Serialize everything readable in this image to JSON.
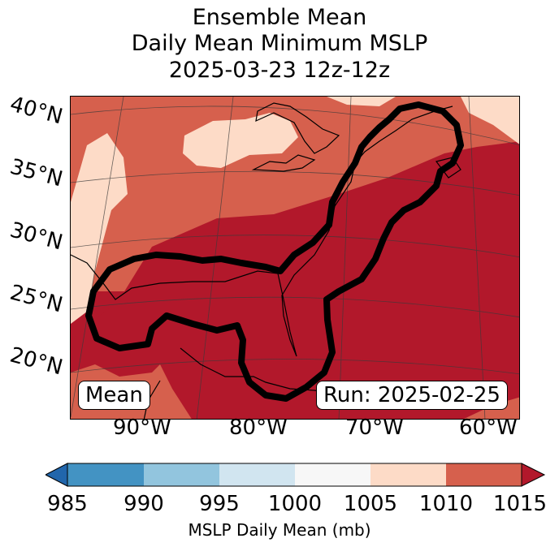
{
  "title": {
    "line1": "Ensemble Mean",
    "line2": "Daily Mean Minimum MSLP",
    "line3": "2025-03-23 12z-12z"
  },
  "map": {
    "lat_labels": [
      "40°N",
      "35°N",
      "30°N",
      "25°N",
      "20°N"
    ],
    "lon_labels": [
      "90°W",
      "80°W",
      "70°W",
      "60°W"
    ],
    "colors": {
      "c1005_1010": "#fddbc7",
      "c1010_1015": "#d6604d",
      "c1015_plus": "#b2182b"
    }
  },
  "labels": {
    "mean": "Mean",
    "run": "Run: 2025-02-25"
  },
  "colorbar": {
    "ticks": [
      "985",
      "990",
      "995",
      "1000",
      "1005",
      "1010",
      "1015"
    ],
    "colors": [
      "#2166ac",
      "#4393c3",
      "#92c5de",
      "#d1e5f0",
      "#f7f7f7",
      "#fddbc7",
      "#d6604d",
      "#b2182b"
    ],
    "label": "MSLP Daily Mean (mb)"
  }
}
